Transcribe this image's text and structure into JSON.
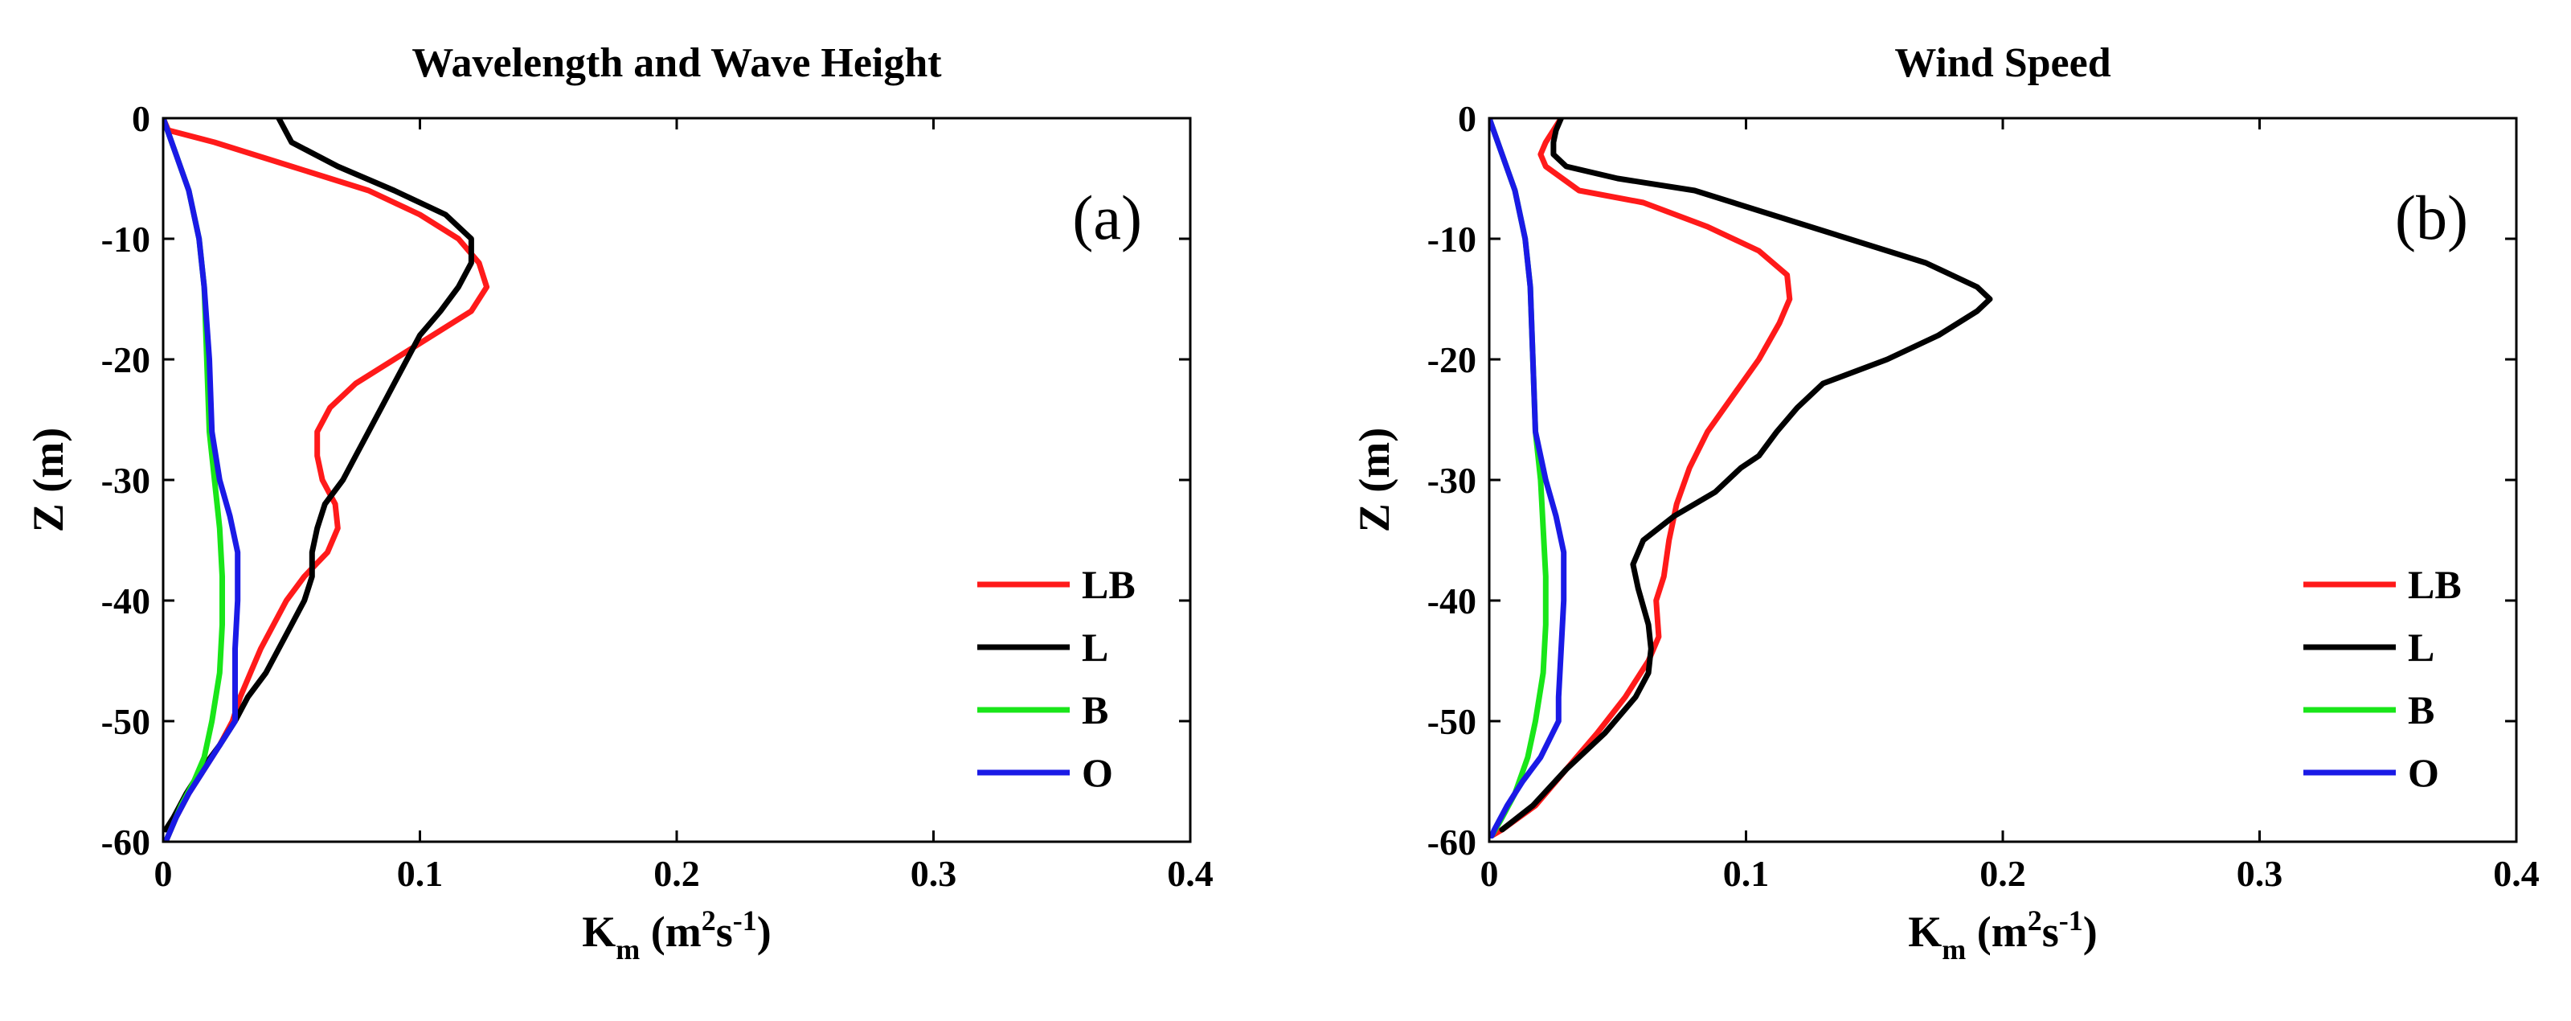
{
  "chart_data": [
    {
      "type": "line",
      "title": "Wavelength and Wave Height",
      "panel_label": "(a)",
      "xlabel_main": "K",
      "xlabel_sub": "m",
      "xlabel_unit_pre": "(m",
      "xlabel_unit_sup1": "2",
      "xlabel_unit_mid": "s",
      "xlabel_unit_sup2": "-1",
      "xlabel_unit_post": ")",
      "ylabel": "Z (m)",
      "xlim": [
        0,
        0.4
      ],
      "ylim": [
        -60,
        0
      ],
      "xticks": [
        0,
        0.1,
        0.2,
        0.3,
        0.4
      ],
      "xtick_labels": [
        "0",
        "0.1",
        "0.2",
        "0.3",
        "0.4"
      ],
      "yticks": [
        0,
        -10,
        -20,
        -30,
        -40,
        -50,
        -60
      ],
      "ytick_labels": [
        "0",
        "-10",
        "-20",
        "-30",
        "-40",
        "-50",
        "-60"
      ],
      "legend_position": "lower-right",
      "series": [
        {
          "name": "LB",
          "color": "#ff1a1a",
          "points": [
            [
              0,
              0
            ],
            [
              0.002,
              -1
            ],
            [
              0.02,
              -2
            ],
            [
              0.05,
              -4
            ],
            [
              0.08,
              -6
            ],
            [
              0.1,
              -8
            ],
            [
              0.115,
              -10
            ],
            [
              0.123,
              -12
            ],
            [
              0.126,
              -14
            ],
            [
              0.12,
              -16
            ],
            [
              0.105,
              -18
            ],
            [
              0.09,
              -20
            ],
            [
              0.075,
              -22
            ],
            [
              0.065,
              -24
            ],
            [
              0.06,
              -26
            ],
            [
              0.06,
              -28
            ],
            [
              0.062,
              -30
            ],
            [
              0.067,
              -32
            ],
            [
              0.068,
              -34
            ],
            [
              0.064,
              -36
            ],
            [
              0.055,
              -38
            ],
            [
              0.048,
              -40
            ],
            [
              0.043,
              -42
            ],
            [
              0.038,
              -44
            ],
            [
              0.034,
              -46
            ],
            [
              0.03,
              -48
            ],
            [
              0.027,
              -50
            ],
            [
              0.022,
              -52
            ],
            [
              0.016,
              -54
            ],
            [
              0.01,
              -56
            ],
            [
              0.005,
              -58
            ],
            [
              0.001,
              -60
            ]
          ]
        },
        {
          "name": "L",
          "color": "#000000",
          "points": [
            [
              0.045,
              0
            ],
            [
              0.05,
              -2
            ],
            [
              0.068,
              -4
            ],
            [
              0.09,
              -6
            ],
            [
              0.11,
              -8
            ],
            [
              0.12,
              -10
            ],
            [
              0.12,
              -12
            ],
            [
              0.115,
              -14
            ],
            [
              0.108,
              -16
            ],
            [
              0.1,
              -18
            ],
            [
              0.095,
              -20
            ],
            [
              0.09,
              -22
            ],
            [
              0.085,
              -24
            ],
            [
              0.08,
              -26
            ],
            [
              0.075,
              -28
            ],
            [
              0.07,
              -30
            ],
            [
              0.063,
              -32
            ],
            [
              0.06,
              -34
            ],
            [
              0.058,
              -36
            ],
            [
              0.058,
              -38
            ],
            [
              0.055,
              -40
            ],
            [
              0.05,
              -42
            ],
            [
              0.045,
              -44
            ],
            [
              0.04,
              -46
            ],
            [
              0.033,
              -48
            ],
            [
              0.028,
              -50
            ],
            [
              0.022,
              -52
            ],
            [
              0.015,
              -54
            ],
            [
              0.009,
              -56
            ],
            [
              0.004,
              -58
            ],
            [
              0.001,
              -59
            ]
          ]
        },
        {
          "name": "B",
          "color": "#19e619",
          "points": [
            [
              0,
              0
            ],
            [
              0.005,
              -3
            ],
            [
              0.01,
              -6
            ],
            [
              0.014,
              -10
            ],
            [
              0.016,
              -14
            ],
            [
              0.017,
              -20
            ],
            [
              0.018,
              -26
            ],
            [
              0.02,
              -30
            ],
            [
              0.022,
              -34
            ],
            [
              0.023,
              -38
            ],
            [
              0.023,
              -42
            ],
            [
              0.022,
              -46
            ],
            [
              0.019,
              -50
            ],
            [
              0.016,
              -53
            ],
            [
              0.012,
              -55
            ],
            [
              0.007,
              -57
            ],
            [
              0.003,
              -59
            ],
            [
              0.001,
              -60
            ]
          ]
        },
        {
          "name": "O",
          "color": "#1a1ae6",
          "points": [
            [
              0,
              0
            ],
            [
              0.005,
              -3
            ],
            [
              0.01,
              -6
            ],
            [
              0.014,
              -10
            ],
            [
              0.016,
              -14
            ],
            [
              0.018,
              -20
            ],
            [
              0.019,
              -26
            ],
            [
              0.022,
              -30
            ],
            [
              0.026,
              -33
            ],
            [
              0.029,
              -36
            ],
            [
              0.029,
              -40
            ],
            [
              0.028,
              -44
            ],
            [
              0.028,
              -48
            ],
            [
              0.028,
              -50
            ],
            [
              0.022,
              -52
            ],
            [
              0.016,
              -54
            ],
            [
              0.01,
              -56
            ],
            [
              0.005,
              -58
            ],
            [
              0.001,
              -60
            ]
          ]
        }
      ]
    },
    {
      "type": "line",
      "title": "Wind Speed",
      "panel_label": "(b)",
      "xlabel_main": "K",
      "xlabel_sub": "m",
      "xlabel_unit_pre": "(m",
      "xlabel_unit_sup1": "2",
      "xlabel_unit_mid": "s",
      "xlabel_unit_sup2": "-1",
      "xlabel_unit_post": ")",
      "ylabel": "Z (m)",
      "xlim": [
        0,
        0.4
      ],
      "ylim": [
        -60,
        0
      ],
      "xticks": [
        0,
        0.1,
        0.2,
        0.3,
        0.4
      ],
      "xtick_labels": [
        "0",
        "0.1",
        "0.2",
        "0.3",
        "0.4"
      ],
      "yticks": [
        0,
        -10,
        -20,
        -30,
        -40,
        -50,
        -60
      ],
      "ytick_labels": [
        "0",
        "-10",
        "-20",
        "-30",
        "-40",
        "-50",
        "-60"
      ],
      "legend_position": "lower-right",
      "series": [
        {
          "name": "LB",
          "color": "#ff1a1a",
          "points": [
            [
              0.028,
              0
            ],
            [
              0.022,
              -2
            ],
            [
              0.02,
              -3
            ],
            [
              0.022,
              -4
            ],
            [
              0.035,
              -6
            ],
            [
              0.06,
              -7
            ],
            [
              0.085,
              -9
            ],
            [
              0.105,
              -11
            ],
            [
              0.116,
              -13
            ],
            [
              0.117,
              -15
            ],
            [
              0.113,
              -17
            ],
            [
              0.105,
              -20
            ],
            [
              0.095,
              -23
            ],
            [
              0.085,
              -26
            ],
            [
              0.078,
              -29
            ],
            [
              0.073,
              -32
            ],
            [
              0.07,
              -35
            ],
            [
              0.068,
              -38
            ],
            [
              0.065,
              -40
            ],
            [
              0.066,
              -43
            ],
            [
              0.062,
              -45
            ],
            [
              0.053,
              -48
            ],
            [
              0.042,
              -51
            ],
            [
              0.03,
              -54
            ],
            [
              0.018,
              -57
            ],
            [
              0.005,
              -59
            ],
            [
              0.001,
              -59.5
            ]
          ]
        },
        {
          "name": "L",
          "color": "#000000",
          "points": [
            [
              0.028,
              0
            ],
            [
              0.026,
              -1
            ],
            [
              0.025,
              -2
            ],
            [
              0.025,
              -3
            ],
            [
              0.03,
              -4
            ],
            [
              0.05,
              -5
            ],
            [
              0.08,
              -6
            ],
            [
              0.11,
              -8
            ],
            [
              0.14,
              -10
            ],
            [
              0.17,
              -12
            ],
            [
              0.19,
              -14
            ],
            [
              0.195,
              -15
            ],
            [
              0.19,
              -16
            ],
            [
              0.175,
              -18
            ],
            [
              0.155,
              -20
            ],
            [
              0.13,
              -22
            ],
            [
              0.12,
              -24
            ],
            [
              0.112,
              -26
            ],
            [
              0.105,
              -28
            ],
            [
              0.098,
              -29
            ],
            [
              0.088,
              -31
            ],
            [
              0.072,
              -33
            ],
            [
              0.06,
              -35
            ],
            [
              0.056,
              -37
            ],
            [
              0.058,
              -39
            ],
            [
              0.062,
              -42
            ],
            [
              0.063,
              -44
            ],
            [
              0.062,
              -46
            ],
            [
              0.057,
              -48
            ],
            [
              0.045,
              -51
            ],
            [
              0.03,
              -54
            ],
            [
              0.017,
              -57
            ],
            [
              0.005,
              -59
            ]
          ]
        },
        {
          "name": "B",
          "color": "#19e619",
          "points": [
            [
              0,
              0
            ],
            [
              0.005,
              -3
            ],
            [
              0.01,
              -6
            ],
            [
              0.014,
              -10
            ],
            [
              0.016,
              -14
            ],
            [
              0.017,
              -20
            ],
            [
              0.018,
              -26
            ],
            [
              0.02,
              -30
            ],
            [
              0.021,
              -34
            ],
            [
              0.022,
              -38
            ],
            [
              0.022,
              -42
            ],
            [
              0.021,
              -46
            ],
            [
              0.018,
              -50
            ],
            [
              0.015,
              -53
            ],
            [
              0.01,
              -56
            ],
            [
              0.005,
              -58
            ],
            [
              0.001,
              -59.5
            ]
          ]
        },
        {
          "name": "O",
          "color": "#1a1ae6",
          "points": [
            [
              0,
              0
            ],
            [
              0.005,
              -3
            ],
            [
              0.01,
              -6
            ],
            [
              0.014,
              -10
            ],
            [
              0.016,
              -14
            ],
            [
              0.017,
              -20
            ],
            [
              0.018,
              -26
            ],
            [
              0.022,
              -30
            ],
            [
              0.026,
              -33
            ],
            [
              0.029,
              -36
            ],
            [
              0.029,
              -40
            ],
            [
              0.028,
              -44
            ],
            [
              0.027,
              -48
            ],
            [
              0.027,
              -50
            ],
            [
              0.02,
              -53
            ],
            [
              0.013,
              -55
            ],
            [
              0.007,
              -57
            ],
            [
              0.002,
              -59
            ],
            [
              0.001,
              -59.5
            ]
          ]
        }
      ]
    }
  ]
}
